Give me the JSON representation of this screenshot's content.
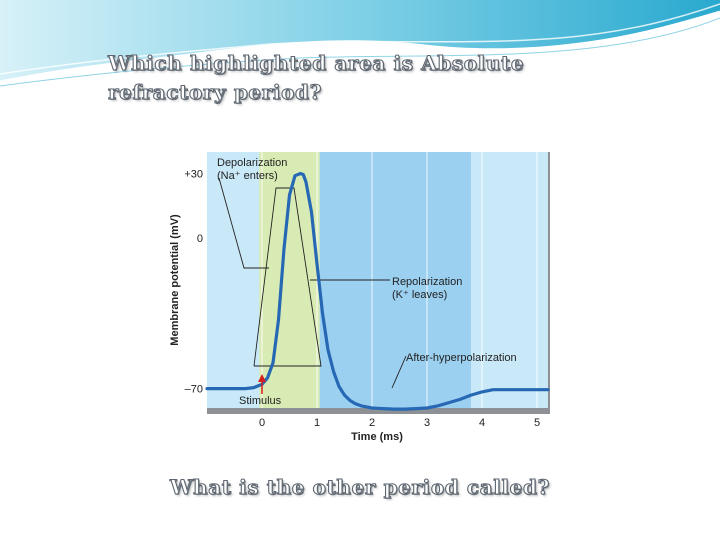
{
  "slide": {
    "question": "Which highlighted area is Absolute refractory period?",
    "followup": "What is the other period called?"
  },
  "chart_data": {
    "type": "line",
    "xlabel": "Time (ms)",
    "ylabel": "Membrane potential (mV)",
    "xlim": [
      -1,
      5.2
    ],
    "ylim": [
      -79,
      40
    ],
    "x_ticks": [
      0,
      1,
      2,
      3,
      4,
      5
    ],
    "y_ticks": [
      {
        "value": 30,
        "label": "+30"
      },
      {
        "value": 0,
        "label": "0"
      },
      {
        "value": -70,
        "label": "–70"
      }
    ],
    "grid": true,
    "highlighted_regions": [
      {
        "from": -0.05,
        "to": 1.05,
        "color": "#d9ebb4"
      },
      {
        "from": 1.05,
        "to": 3.8,
        "color": "#9cd0f1"
      }
    ],
    "background_color": "#c9e8f8",
    "line_color": "#2668b3",
    "series": [
      {
        "x": [
          -1.0,
          -0.3,
          -0.15,
          0.0,
          0.1,
          0.2,
          0.3,
          0.4,
          0.5,
          0.6,
          0.7,
          0.75,
          0.8,
          0.9,
          1.0,
          1.1,
          1.2,
          1.3,
          1.4,
          1.5,
          1.6,
          1.7,
          1.8,
          2.0,
          2.2,
          2.4,
          2.6,
          2.8,
          3.0,
          3.2,
          3.4,
          3.6,
          3.8,
          4.0,
          4.2,
          5.2
        ],
        "y": [
          -70,
          -70,
          -69.5,
          -68,
          -65,
          -58,
          -38,
          -5,
          20,
          29,
          30,
          29.5,
          26,
          12,
          -12,
          -35,
          -52,
          -62,
          -69,
          -73,
          -75.5,
          -77,
          -78,
          -79,
          -79.3,
          -79.5,
          -79.5,
          -79.3,
          -79,
          -78,
          -76.5,
          -75,
          -73,
          -71.5,
          -70.5,
          -70.5
        ]
      }
    ],
    "annotations": {
      "depolarization": [
        "Depolarization",
        "(Na⁺ enters)"
      ],
      "repolarization": [
        "Repolarization",
        "(K⁺ leaves)"
      ],
      "after_hyperpolarization": "After-hyperpolarization",
      "stimulus": "Stimulus"
    },
    "stimulus_at": 0
  }
}
